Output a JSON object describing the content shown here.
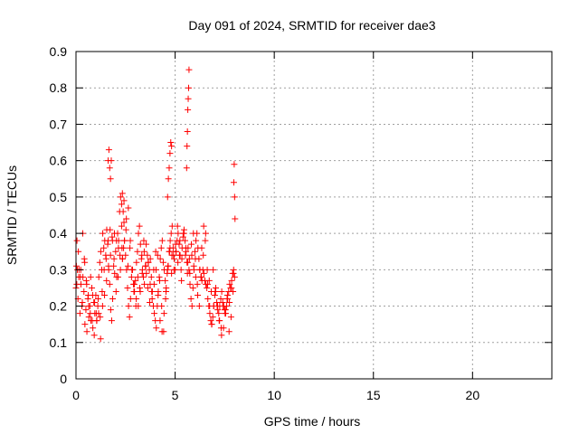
{
  "chart_data": {
    "type": "scatter",
    "title": "Day 091 of 2024, SRMTID for receiver dae3",
    "xlabel": "GPS time / hours",
    "ylabel": "SRMTID / TECUs",
    "xlim": [
      0,
      24
    ],
    "ylim": [
      0,
      0.9
    ],
    "xticks": [
      0,
      5,
      10,
      15,
      20
    ],
    "xtick_labels": [
      "0",
      "5",
      "10",
      "15",
      "20"
    ],
    "yticks": [
      0,
      0.1,
      0.2,
      0.3,
      0.4,
      0.5,
      0.6,
      0.7,
      0.8,
      0.9
    ],
    "ytick_labels": [
      "0",
      "0.1",
      "0.2",
      "0.3",
      "0.4",
      "0.5",
      "0.6",
      "0.7",
      "0.8",
      "0.9"
    ],
    "grid": true,
    "marker": "+",
    "series": [
      {
        "name": "SRMTID",
        "color": "#ff0000",
        "x": [
          0.0,
          0.05,
          0.1,
          0.15,
          0.2,
          0.25,
          0.3,
          0.35,
          0.4,
          0.45,
          0.5,
          0.55,
          0.6,
          0.65,
          0.7,
          0.75,
          0.8,
          0.85,
          0.9,
          0.95,
          1.0,
          1.05,
          1.1,
          1.15,
          1.2,
          1.25,
          1.3,
          1.35,
          1.4,
          1.45,
          1.5,
          1.55,
          1.6,
          1.65,
          1.7,
          1.75,
          1.8,
          1.85,
          1.9,
          1.95,
          2.0,
          2.05,
          2.1,
          2.15,
          2.2,
          2.25,
          2.3,
          2.35,
          2.4,
          2.45,
          2.5,
          2.55,
          2.6,
          2.65,
          2.7,
          2.75,
          2.8,
          2.85,
          2.9,
          2.95,
          3.0,
          3.05,
          3.1,
          3.15,
          3.2,
          3.25,
          3.3,
          3.35,
          3.4,
          3.45,
          3.5,
          3.55,
          3.6,
          3.65,
          3.7,
          3.75,
          3.8,
          3.85,
          3.9,
          3.95,
          4.0,
          4.05,
          4.1,
          4.15,
          4.2,
          4.25,
          4.3,
          4.35,
          4.4,
          4.45,
          4.5,
          4.55,
          4.6,
          4.65,
          4.7,
          4.75,
          4.8,
          4.85,
          4.9,
          4.95,
          5.0,
          5.05,
          5.1,
          5.15,
          5.2,
          5.25,
          5.3,
          5.35,
          5.4,
          5.45,
          5.5,
          5.55,
          5.6,
          5.65,
          5.7,
          5.75,
          5.8,
          5.85,
          5.9,
          5.95,
          6.0,
          6.05,
          6.1,
          6.15,
          6.2,
          6.25,
          6.3,
          6.35,
          6.4,
          6.45,
          6.5,
          6.55,
          6.6,
          6.65,
          6.7,
          6.75,
          6.8,
          6.85,
          6.9,
          6.95,
          7.0,
          7.05,
          7.1,
          7.15,
          7.2,
          7.25,
          7.3,
          7.35,
          7.4,
          7.45,
          7.5,
          7.55,
          7.6,
          7.65,
          7.7,
          7.75,
          7.8,
          7.85,
          7.9,
          7.95,
          8.0,
          0.02,
          0.07,
          0.12,
          0.22,
          0.32,
          0.42,
          0.52,
          0.62,
          0.72,
          0.82,
          0.92,
          1.02,
          1.12,
          1.22,
          1.32,
          1.42,
          1.52,
          1.62,
          1.72,
          1.82,
          1.92,
          2.02,
          2.12,
          2.22,
          2.32,
          2.42,
          2.52,
          2.62,
          2.72,
          2.82,
          2.92,
          3.02,
          3.12,
          3.22,
          3.32,
          3.42,
          3.52,
          3.62,
          3.72,
          3.82,
          3.92,
          4.02,
          4.12,
          4.22,
          4.32,
          4.42,
          4.52,
          4.62,
          4.72,
          4.82,
          4.92,
          5.02,
          5.12,
          5.22,
          5.32,
          5.42,
          5.52,
          5.62,
          5.72,
          5.82,
          5.92,
          6.02,
          6.12,
          6.22,
          6.32,
          6.42,
          6.52,
          6.62,
          6.72,
          6.82,
          6.92,
          7.02,
          7.12,
          7.22,
          7.32,
          7.42,
          7.52,
          7.62,
          7.72,
          7.82,
          7.92,
          0.04,
          0.14,
          0.24,
          0.34,
          0.44,
          0.54,
          0.64,
          0.74,
          0.84,
          0.94,
          1.04,
          1.14,
          1.24,
          1.34,
          1.44,
          1.54,
          1.64,
          1.74,
          1.84,
          1.94,
          2.04,
          2.14,
          2.24,
          2.34,
          2.44,
          2.54,
          2.64,
          2.74,
          2.84,
          2.94,
          3.04,
          3.14,
          3.24,
          3.34,
          3.44,
          3.54,
          3.64,
          3.74,
          3.84,
          3.94,
          4.04,
          4.14,
          4.24,
          4.34,
          4.44,
          4.54,
          4.64,
          4.74,
          4.84,
          4.94,
          5.04,
          5.14,
          5.24,
          5.34,
          5.44,
          5.54,
          5.64,
          5.74,
          5.84,
          5.94,
          6.04,
          6.14,
          6.24,
          6.34,
          6.44,
          6.54,
          6.64,
          6.74,
          6.84,
          6.94,
          7.04,
          7.14,
          7.24,
          7.34,
          7.44,
          7.54,
          7.64,
          7.74,
          7.84,
          7.94,
          1.62,
          1.66,
          1.7,
          1.74,
          1.78,
          2.3,
          2.34,
          2.38,
          2.42,
          4.62,
          4.66,
          4.7,
          4.74,
          4.78,
          4.82,
          5.58,
          5.6,
          5.62,
          5.64,
          5.66,
          5.68,
          5.7,
          7.96,
          7.98,
          8.0,
          8.02
        ],
        "y": [
          0.25,
          0.38,
          0.22,
          0.3,
          0.18,
          0.26,
          0.2,
          0.28,
          0.24,
          0.15,
          0.19,
          0.13,
          0.22,
          0.17,
          0.2,
          0.16,
          0.25,
          0.14,
          0.21,
          0.18,
          0.23,
          0.16,
          0.2,
          0.28,
          0.32,
          0.35,
          0.3,
          0.4,
          0.36,
          0.38,
          0.34,
          0.41,
          0.37,
          0.3,
          0.26,
          0.19,
          0.16,
          0.22,
          0.31,
          0.29,
          0.35,
          0.28,
          0.4,
          0.38,
          0.46,
          0.5,
          0.42,
          0.33,
          0.36,
          0.38,
          0.34,
          0.3,
          0.25,
          0.2,
          0.17,
          0.22,
          0.28,
          0.3,
          0.26,
          0.24,
          0.27,
          0.32,
          0.35,
          0.4,
          0.42,
          0.37,
          0.33,
          0.3,
          0.28,
          0.26,
          0.31,
          0.29,
          0.34,
          0.32,
          0.3,
          0.33,
          0.28,
          0.24,
          0.2,
          0.18,
          0.16,
          0.14,
          0.2,
          0.24,
          0.28,
          0.33,
          0.36,
          0.38,
          0.32,
          0.3,
          0.27,
          0.25,
          0.29,
          0.31,
          0.35,
          0.38,
          0.4,
          0.42,
          0.36,
          0.33,
          0.3,
          0.35,
          0.38,
          0.4,
          0.37,
          0.34,
          0.3,
          0.36,
          0.39,
          0.41,
          0.38,
          0.35,
          0.32,
          0.36,
          0.3,
          0.26,
          0.22,
          0.2,
          0.25,
          0.3,
          0.35,
          0.38,
          0.4,
          0.36,
          0.33,
          0.3,
          0.28,
          0.27,
          0.3,
          0.29,
          0.27,
          0.26,
          0.25,
          0.22,
          0.2,
          0.18,
          0.16,
          0.15,
          0.17,
          0.2,
          0.23,
          0.25,
          0.21,
          0.19,
          0.18,
          0.2,
          0.22,
          0.24,
          0.21,
          0.2,
          0.19,
          0.18,
          0.2,
          0.22,
          0.24,
          0.26,
          0.25,
          0.27,
          0.29,
          0.3,
          0.28,
          0.31,
          0.3,
          0.35,
          0.28,
          0.21,
          0.33,
          0.27,
          0.23,
          0.18,
          0.16,
          0.12,
          0.18,
          0.22,
          0.17,
          0.24,
          0.3,
          0.33,
          0.38,
          0.41,
          0.39,
          0.33,
          0.24,
          0.28,
          0.34,
          0.36,
          0.43,
          0.41,
          0.31,
          0.36,
          0.3,
          0.24,
          0.2,
          0.28,
          0.25,
          0.34,
          0.38,
          0.31,
          0.25,
          0.21,
          0.24,
          0.3,
          0.35,
          0.34,
          0.27,
          0.2,
          0.13,
          0.22,
          0.3,
          0.35,
          0.29,
          0.34,
          0.37,
          0.42,
          0.34,
          0.27,
          0.4,
          0.34,
          0.29,
          0.33,
          0.37,
          0.4,
          0.33,
          0.26,
          0.2,
          0.28,
          0.34,
          0.38,
          0.3,
          0.27,
          0.24,
          0.3,
          0.24,
          0.2,
          0.16,
          0.14,
          0.2,
          0.18,
          0.22,
          0.13,
          0.17,
          0.24,
          0.26,
          0.28,
          0.3,
          0.4,
          0.32,
          0.26,
          0.2,
          0.28,
          0.23,
          0.21,
          0.16,
          0.18,
          0.11,
          0.2,
          0.23,
          0.27,
          0.31,
          0.34,
          0.38,
          0.4,
          0.38,
          0.36,
          0.3,
          0.33,
          0.38,
          0.44,
          0.47,
          0.38,
          0.3,
          0.26,
          0.22,
          0.2,
          0.24,
          0.29,
          0.35,
          0.37,
          0.32,
          0.26,
          0.22,
          0.26,
          0.3,
          0.23,
          0.16,
          0.13,
          0.18,
          0.24,
          0.31,
          0.36,
          0.34,
          0.3,
          0.35,
          0.32,
          0.38,
          0.33,
          0.4,
          0.36,
          0.32,
          0.29,
          0.34,
          0.31,
          0.28,
          0.23,
          0.3,
          0.36,
          0.42,
          0.4,
          0.26,
          0.2,
          0.15,
          0.2,
          0.24,
          0.2,
          0.16,
          0.12,
          0.14,
          0.19,
          0.23,
          0.21,
          0.25,
          0.29,
          0.6,
          0.63,
          0.58,
          0.55,
          0.6,
          0.48,
          0.51,
          0.46,
          0.49,
          0.5,
          0.55,
          0.58,
          0.62,
          0.65,
          0.64,
          0.58,
          0.64,
          0.68,
          0.74,
          0.77,
          0.8,
          0.85,
          0.54,
          0.59,
          0.5,
          0.44
        ]
      }
    ]
  }
}
